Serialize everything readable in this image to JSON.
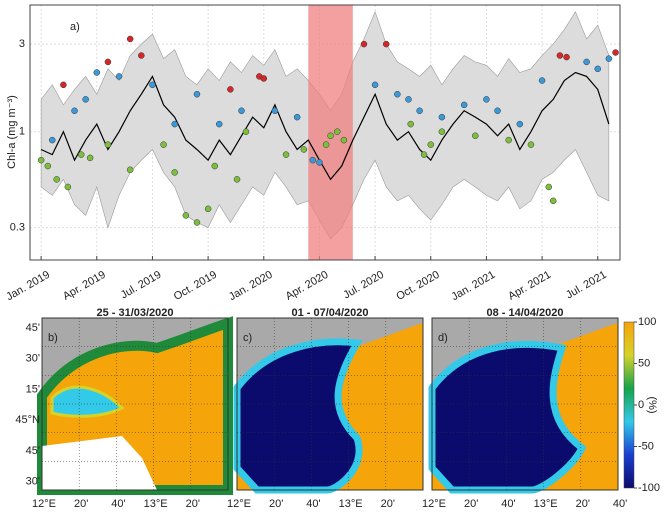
{
  "chart_data": [
    {
      "type": "band-line",
      "panel_label": "a)",
      "ylabel": "Chl-a (mg m⁻³)",
      "log_y": true,
      "grid": true,
      "ylim": [
        0.2,
        4.9
      ],
      "yticks": [
        0.3,
        1,
        3
      ],
      "xlim": [
        2018.95,
        2021.6
      ],
      "xticks": [
        {
          "value": 2019.0,
          "label": "Jan. 2019"
        },
        {
          "value": 2019.25,
          "label": "Apr. 2019"
        },
        {
          "value": 2019.5,
          "label": "Jul. 2019"
        },
        {
          "value": 2019.75,
          "label": "Oct. 2019"
        },
        {
          "value": 2020.0,
          "label": "Jan. 2020"
        },
        {
          "value": 2020.25,
          "label": "Apr. 2020"
        },
        {
          "value": 2020.5,
          "label": "Jul. 2020"
        },
        {
          "value": 2020.75,
          "label": "Oct. 2020"
        },
        {
          "value": 2021.0,
          "label": "Jan. 2021"
        },
        {
          "value": 2021.25,
          "label": "Apr. 2021"
        },
        {
          "value": 2021.5,
          "label": "Jul. 2021"
        }
      ],
      "xspan": [
        2020.2,
        2020.4
      ],
      "span_color": "#f08080",
      "x": [
        2019,
        2019.05,
        2019.1,
        2019.15,
        2019.2,
        2019.25,
        2019.3,
        2019.35,
        2019.4,
        2019.45,
        2019.5,
        2019.55,
        2019.6,
        2019.65,
        2019.7,
        2019.75,
        2019.8,
        2019.85,
        2019.9,
        2019.95,
        2020,
        2020.05,
        2020.1,
        2020.15,
        2020.2,
        2020.25,
        2020.3,
        2020.35,
        2020.4,
        2020.45,
        2020.5,
        2020.55,
        2020.6,
        2020.65,
        2020.7,
        2020.75,
        2020.8,
        2020.85,
        2020.9,
        2020.95,
        2021,
        2021.05,
        2021.1,
        2021.15,
        2021.2,
        2021.25,
        2021.3,
        2021.35,
        2021.4,
        2021.45,
        2021.5,
        2021.55
      ],
      "line": {
        "color": "#000000",
        "values": [
          0.8,
          0.75,
          1.0,
          0.7,
          0.9,
          1.1,
          0.8,
          1.0,
          1.3,
          1.6,
          2.0,
          1.4,
          1.2,
          0.9,
          0.8,
          0.7,
          0.9,
          0.75,
          0.95,
          1.2,
          1.05,
          1.4,
          1.0,
          0.8,
          0.9,
          0.7,
          0.55,
          0.65,
          0.9,
          1.2,
          1.6,
          1.1,
          0.9,
          1.0,
          0.8,
          0.7,
          0.9,
          1.1,
          1.3,
          1.2,
          1.1,
          0.95,
          1.1,
          0.8,
          1.0,
          1.3,
          1.5,
          1.9,
          2.1,
          2.0,
          1.7,
          1.1
        ]
      },
      "band": {
        "color": "#dcdcdc",
        "upper": [
          1.5,
          1.8,
          1.4,
          1.7,
          2.0,
          1.6,
          2.2,
          1.9,
          2.6,
          3.0,
          3.4,
          2.5,
          2.8,
          2.0,
          1.8,
          2.2,
          1.9,
          2.4,
          2.1,
          2.6,
          2.3,
          2.8,
          2.0,
          2.2,
          1.9,
          1.6,
          1.3,
          1.6,
          2.4,
          3.2,
          4.5,
          3.0,
          2.4,
          2.2,
          2.0,
          2.3,
          1.8,
          2.2,
          2.6,
          2.4,
          2.3,
          2.0,
          2.5,
          2.1,
          2.2,
          2.6,
          3.0,
          3.6,
          4.5,
          3.2,
          3.8,
          2.6
        ],
        "lower": [
          0.5,
          0.45,
          0.55,
          0.4,
          0.35,
          0.5,
          0.3,
          0.45,
          0.6,
          0.7,
          0.8,
          0.6,
          0.5,
          0.35,
          0.32,
          0.3,
          0.4,
          0.32,
          0.4,
          0.5,
          0.45,
          0.6,
          0.5,
          0.4,
          0.42,
          0.33,
          0.26,
          0.3,
          0.4,
          0.55,
          0.7,
          0.5,
          0.42,
          0.45,
          0.38,
          0.33,
          0.4,
          0.5,
          0.55,
          0.5,
          0.45,
          0.42,
          0.5,
          0.38,
          0.42,
          0.55,
          0.6,
          0.7,
          0.8,
          0.6,
          0.45,
          0.42
        ]
      },
      "points": [
        {
          "color": "#d62728",
          "x": [
            2019.1,
            2019.3,
            2019.4,
            2019.45,
            2019.85,
            2019.98,
            2020.0,
            2020.45,
            2020.55,
            2021.33,
            2021.36,
            2021.58
          ],
          "values": [
            1.8,
            2.4,
            3.2,
            2.6,
            1.7,
            2.0,
            1.95,
            3.0,
            3.0,
            2.6,
            2.55,
            2.7
          ]
        },
        {
          "color": "#3a9ad9",
          "x": [
            2019.05,
            2019.15,
            2019.2,
            2019.25,
            2019.35,
            2019.5,
            2019.6,
            2019.7,
            2019.8,
            2019.9,
            2020.05,
            2020.15,
            2020.22,
            2020.25,
            2020.5,
            2020.6,
            2020.65,
            2020.7,
            2020.8,
            2020.9,
            2021.0,
            2021.05,
            2021.15,
            2021.25,
            2021.45,
            2021.5,
            2021.55
          ],
          "values": [
            0.9,
            1.3,
            1.5,
            2.1,
            2.0,
            1.8,
            1.1,
            1.6,
            1.1,
            1.3,
            1.3,
            1.2,
            0.7,
            0.68,
            1.8,
            1.6,
            1.5,
            1.3,
            1.2,
            1.4,
            1.5,
            1.3,
            1.1,
            1.9,
            2.4,
            2.2,
            2.5
          ]
        },
        {
          "color": "#7cbf3a",
          "x": [
            2019.0,
            2019.03,
            2019.07,
            2019.12,
            2019.18,
            2019.22,
            2019.3,
            2019.4,
            2019.55,
            2019.6,
            2019.65,
            2019.7,
            2019.75,
            2019.78,
            2019.88,
            2019.92,
            2020.1,
            2020.18,
            2020.28,
            2020.3,
            2020.33,
            2020.36,
            2020.66,
            2020.72,
            2020.75,
            2020.8,
            2020.95,
            2021.1,
            2021.2,
            2021.28,
            2021.3
          ],
          "values": [
            0.7,
            0.65,
            0.55,
            0.5,
            0.75,
            0.72,
            0.85,
            0.62,
            0.85,
            0.6,
            0.35,
            0.32,
            0.38,
            0.65,
            0.55,
            1.0,
            0.75,
            0.8,
            0.85,
            0.95,
            1.0,
            0.9,
            1.1,
            0.75,
            0.85,
            1.0,
            0.95,
            0.9,
            0.85,
            0.5,
            0.42
          ]
        }
      ]
    },
    {
      "type": "colorbar",
      "label": "(%)",
      "clim": [
        -100,
        100
      ],
      "ticks": [
        100,
        50,
        0,
        -50,
        -100
      ],
      "colors": [
        "#0b0b6e",
        "#1b3fd0",
        "#33c9e8",
        "#17a34a",
        "#d6d22a",
        "#f5a40a"
      ]
    }
  ],
  "maps": {
    "panels": [
      {
        "title": "25 - 31/03/2020",
        "label": "b)",
        "x_labels": [
          "12°E",
          "20'",
          "40'",
          "13°E",
          "20'"
        ]
      },
      {
        "title": "01 - 07/04/2020",
        "label": "c)",
        "x_labels": [
          "12°E",
          "20'",
          "40'",
          "13°E",
          "20'"
        ]
      },
      {
        "title": "08 - 14/04/2020",
        "label": "d)",
        "x_labels": [
          "12°E",
          "20'",
          "40'",
          "13°E",
          "20'",
          "40'"
        ]
      }
    ],
    "y_labels": [
      "45'",
      "30'",
      "15'",
      "45°N",
      "45'",
      "30'"
    ]
  }
}
